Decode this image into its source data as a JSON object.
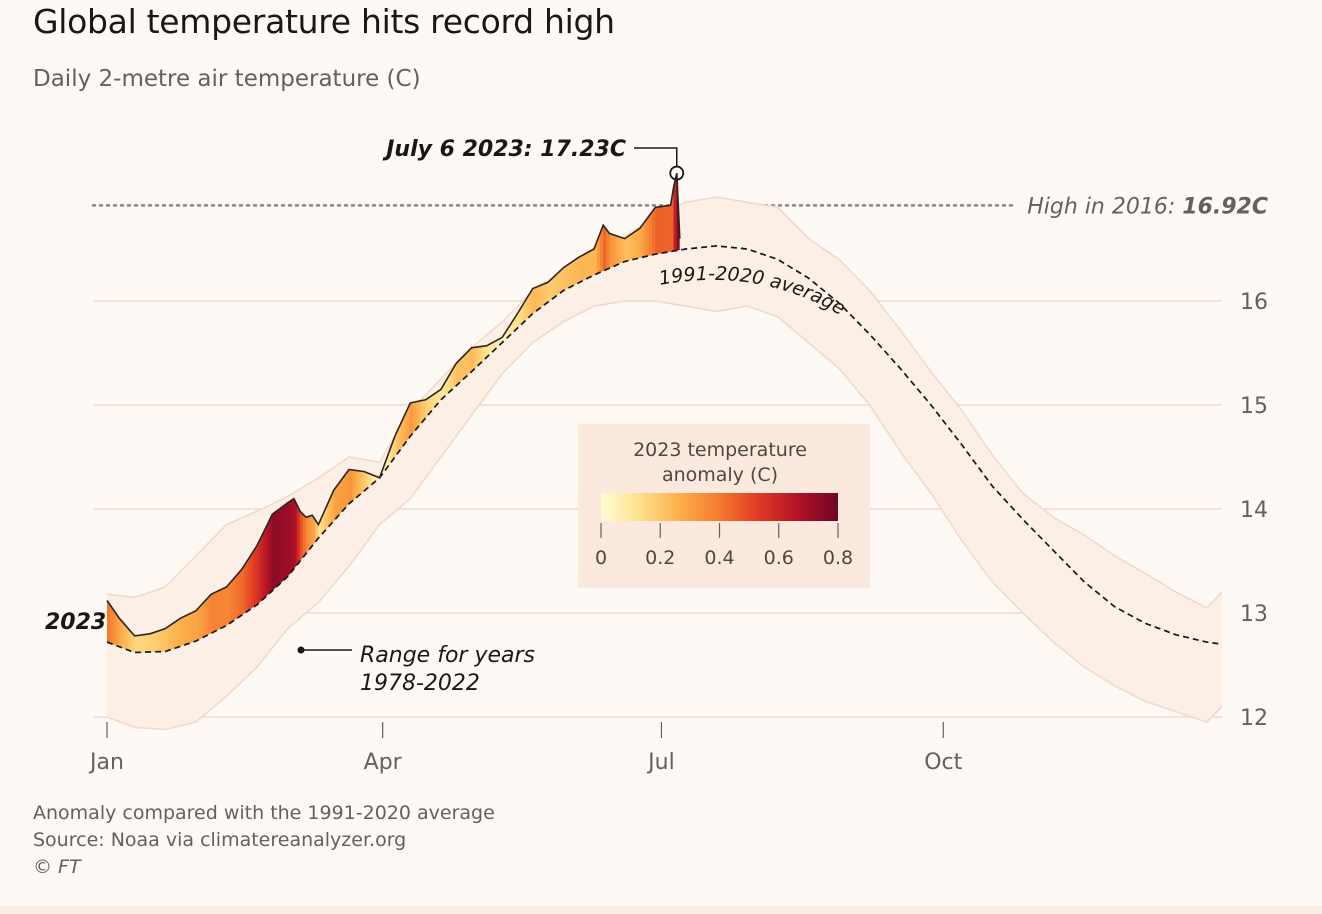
{
  "header": {
    "title": "Global temperature hits record high",
    "subtitle": "Daily 2-metre air temperature (C)"
  },
  "footer": {
    "note": "Anomaly compared with the 1991-2020 average",
    "source": "Source: Noaa via climatereanalyzer.org",
    "copyright": "© FT"
  },
  "colors": {
    "background": "#fff9f5",
    "range_band": "#fcefe6",
    "range_edges": "#f1d9cc",
    "gridline": "#ecdcd2",
    "anomaly_scale": [
      "#fffdd6",
      "#fde08a",
      "#fdae4a",
      "#f47a2f",
      "#e03a23",
      "#b11226",
      "#6e0525"
    ]
  },
  "chart_data": {
    "type": "area",
    "title": "Global temperature hits record high",
    "subtitle": "Daily 2-metre air temperature (C)",
    "xlabel": "",
    "ylabel": "",
    "x_unit": "day of year",
    "xlim": [
      1,
      365
    ],
    "ylim": [
      11.7,
      17.4
    ],
    "x_ticks": [
      {
        "day": 1,
        "label": "Jan"
      },
      {
        "day": 91,
        "label": "Apr"
      },
      {
        "day": 182,
        "label": "Jul"
      },
      {
        "day": 274,
        "label": "Oct"
      }
    ],
    "y_ticks": [
      12,
      13,
      14,
      15,
      16
    ],
    "y_axis_side": "right",
    "grid": true,
    "series": [
      {
        "name": "2023",
        "x": [
          1,
          5,
          10,
          15,
          20,
          25,
          30,
          35,
          40,
          45,
          50,
          55,
          60,
          62,
          64,
          66,
          68,
          70,
          75,
          80,
          85,
          90,
          95,
          100,
          105,
          110,
          115,
          120,
          125,
          130,
          135,
          140,
          145,
          150,
          155,
          160,
          163,
          165,
          170,
          175,
          180,
          185,
          186,
          187,
          188
        ],
        "y": [
          13.12,
          12.95,
          12.78,
          12.8,
          12.85,
          12.95,
          13.02,
          13.18,
          13.25,
          13.42,
          13.65,
          13.95,
          14.06,
          14.1,
          13.98,
          13.92,
          13.94,
          13.85,
          14.18,
          14.38,
          14.36,
          14.3,
          14.7,
          15.02,
          15.05,
          15.15,
          15.4,
          15.55,
          15.57,
          15.65,
          15.88,
          16.12,
          16.18,
          16.32,
          16.42,
          16.5,
          16.73,
          16.65,
          16.6,
          16.7,
          16.9,
          16.92,
          17.1,
          17.23,
          16.6
        ]
      },
      {
        "name": "1991-2020 average",
        "x": [
          1,
          10,
          20,
          30,
          40,
          50,
          60,
          70,
          80,
          90,
          100,
          110,
          120,
          130,
          140,
          150,
          160,
          170,
          180,
          190,
          200,
          210,
          220,
          230,
          240,
          250,
          260,
          270,
          280,
          290,
          300,
          310,
          320,
          330,
          340,
          350,
          360,
          365
        ],
        "y": [
          12.72,
          12.62,
          12.63,
          12.73,
          12.88,
          13.08,
          13.35,
          13.72,
          14.05,
          14.3,
          14.7,
          15.05,
          15.32,
          15.6,
          15.88,
          16.1,
          16.25,
          16.38,
          16.45,
          16.5,
          16.53,
          16.5,
          16.4,
          16.22,
          15.98,
          15.68,
          15.35,
          15.0,
          14.62,
          14.22,
          13.9,
          13.6,
          13.3,
          13.06,
          12.9,
          12.79,
          12.72,
          12.7
        ]
      },
      {
        "name": "Range for years 1978-2022 (max)",
        "x": [
          1,
          10,
          20,
          30,
          40,
          50,
          60,
          70,
          80,
          90,
          100,
          110,
          120,
          130,
          140,
          150,
          160,
          170,
          180,
          190,
          200,
          210,
          220,
          230,
          240,
          250,
          260,
          270,
          280,
          290,
          300,
          310,
          320,
          330,
          340,
          350,
          360,
          365
        ],
        "y": [
          13.18,
          13.15,
          13.25,
          13.55,
          13.85,
          13.98,
          14.12,
          14.3,
          14.5,
          14.45,
          14.95,
          15.25,
          15.55,
          15.8,
          16.1,
          16.3,
          16.5,
          16.62,
          16.82,
          16.95,
          17.0,
          16.95,
          16.9,
          16.6,
          16.4,
          16.1,
          15.72,
          15.32,
          14.95,
          14.52,
          14.15,
          13.92,
          13.75,
          13.55,
          13.38,
          13.2,
          13.05,
          13.2
        ]
      },
      {
        "name": "Range for years 1978-2022 (min)",
        "x": [
          1,
          10,
          20,
          30,
          40,
          50,
          60,
          70,
          80,
          90,
          100,
          110,
          120,
          130,
          140,
          150,
          160,
          170,
          180,
          190,
          200,
          210,
          220,
          230,
          240,
          250,
          260,
          270,
          280,
          290,
          300,
          310,
          320,
          330,
          340,
          350,
          360,
          365
        ],
        "y": [
          12.0,
          11.9,
          11.88,
          11.95,
          12.2,
          12.48,
          12.85,
          13.1,
          13.45,
          13.85,
          14.1,
          14.5,
          14.9,
          15.3,
          15.6,
          15.8,
          15.95,
          16.0,
          16.0,
          15.95,
          15.9,
          15.95,
          15.85,
          15.6,
          15.35,
          15.0,
          14.55,
          14.15,
          13.7,
          13.3,
          13.0,
          12.72,
          12.48,
          12.3,
          12.15,
          12.05,
          11.95,
          12.1
        ]
      }
    ],
    "reference_line": {
      "label": "High in 2016:",
      "value_label": "16.92C",
      "y": 16.92
    },
    "annotations": {
      "peak": {
        "label": "July 6 2023: 17.23C",
        "x": 187,
        "y": 17.23
      },
      "average_label": "1991-2020 average",
      "range_label_line1": "Range for years",
      "range_label_line2": "1978-2022",
      "series_label": "2023"
    },
    "legend": {
      "title_line1": "2023 temperature",
      "title_line2": "anomaly (C)",
      "ticks": [
        "0",
        "0.2",
        "0.4",
        "0.6",
        "0.8"
      ],
      "min": 0,
      "max": 0.8,
      "placement": "center"
    }
  }
}
